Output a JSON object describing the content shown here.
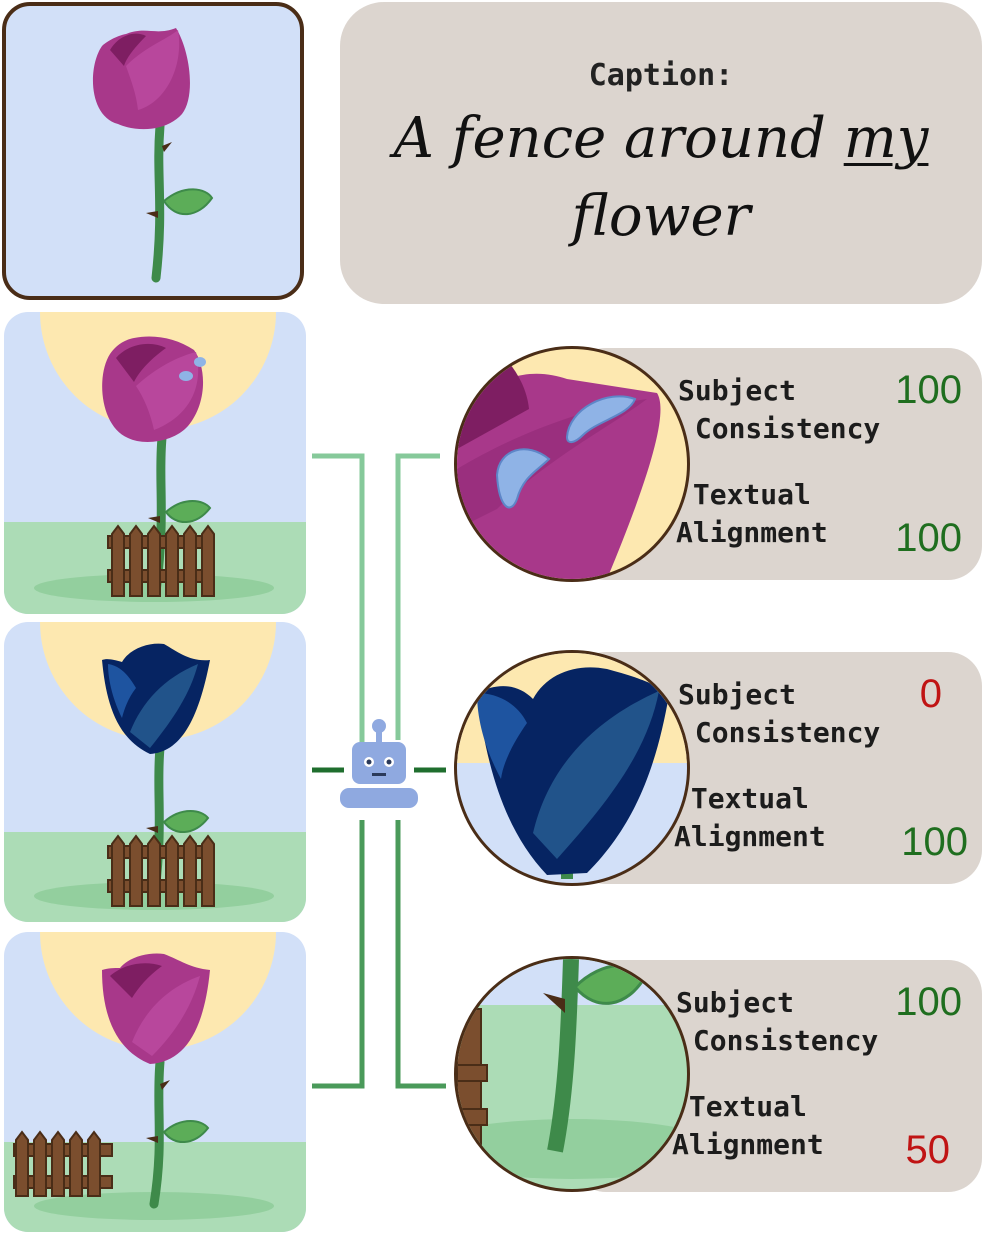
{
  "caption": {
    "label": "Caption:",
    "text_before": "A fence around ",
    "text_emph": "my",
    "text_after": " flower"
  },
  "metrics": {
    "subject": "Subject\n Consistency",
    "textual": " Textual\nAlignment"
  },
  "results": [
    {
      "subject_score": "100",
      "subject_color": "#1f6e1f",
      "text_score": "100",
      "text_color": "#1f6e1f"
    },
    {
      "subject_score": "0",
      "subject_color": "#c01414",
      "text_score": "100",
      "text_color": "#1f6e1f"
    },
    {
      "subject_score": "100",
      "subject_color": "#1f6e1f",
      "text_score": "50",
      "text_color": "#c01414"
    }
  ],
  "colors": {
    "flower_pink": "#a8388a",
    "flower_blue": "#062462",
    "sky": "#d2e0f8",
    "grass": "#acdcb6",
    "sun": "#fde8b0",
    "fence": "#7b4e2e",
    "robot": "#8fa9e0"
  },
  "icons": [
    "robot-evaluator-icon"
  ]
}
